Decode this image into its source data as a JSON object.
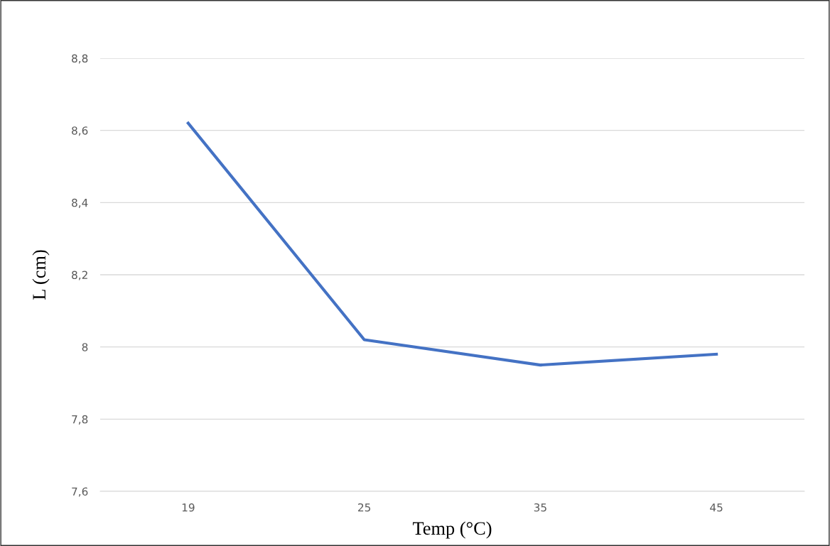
{
  "chart_data": {
    "type": "line",
    "xlabel": "Temp (°C)",
    "ylabel": "L (cm)",
    "categories": [
      "19",
      "25",
      "35",
      "45"
    ],
    "series": [
      {
        "color": "#4472c4",
        "values": [
          8.62,
          8.02,
          7.95,
          7.98
        ]
      }
    ],
    "ylim": [
      7.6,
      8.8
    ],
    "yticks": [
      {
        "value": 7.6,
        "label": "7,6"
      },
      {
        "value": 7.8,
        "label": "7,8"
      },
      {
        "value": 8.0,
        "label": "8"
      },
      {
        "value": 8.2,
        "label": "8,2"
      },
      {
        "value": 8.4,
        "label": "8,4"
      },
      {
        "value": 8.6,
        "label": "8,6"
      },
      {
        "value": 8.8,
        "label": "8,8"
      }
    ],
    "grid": "y",
    "marker": "none",
    "line_style": "solid"
  }
}
